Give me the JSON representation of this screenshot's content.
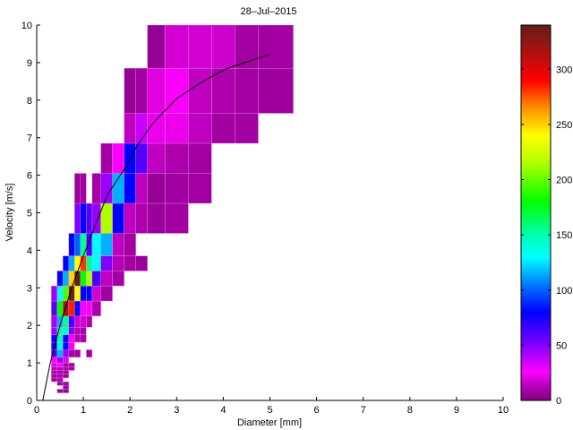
{
  "chart_data": {
    "type": "heatmap",
    "title": "28–Jul–2015",
    "xlabel": "Diameter [mm]",
    "ylabel": "Velocity [m/s]",
    "xlim": [
      0,
      10
    ],
    "ylim": [
      0,
      10
    ],
    "xticks": [
      "0",
      "1",
      "2",
      "3",
      "4",
      "5",
      "6",
      "7",
      "8",
      "9",
      "10"
    ],
    "yticks": [
      "0",
      "1",
      "2",
      "3",
      "4",
      "5",
      "6",
      "7",
      "8",
      "9",
      "10"
    ],
    "grid": false,
    "colorbar": {
      "range": [
        0,
        340
      ],
      "ticks": [
        "0",
        "50",
        "100",
        "150",
        "200",
        "250",
        "300"
      ],
      "colormap": [
        [
          0,
          "#800080"
        ],
        [
          15,
          "#c000c0"
        ],
        [
          25,
          "#ff00ff"
        ],
        [
          50,
          "#8000ff"
        ],
        [
          80,
          "#0000ff"
        ],
        [
          100,
          "#0060ff"
        ],
        [
          130,
          "#00ffff"
        ],
        [
          150,
          "#00ffb0"
        ],
        [
          180,
          "#00ff00"
        ],
        [
          215,
          "#b0ff00"
        ],
        [
          240,
          "#ffff00"
        ],
        [
          265,
          "#ff9000"
        ],
        [
          290,
          "#ff0000"
        ],
        [
          315,
          "#b01010"
        ],
        [
          340,
          "#602018"
        ]
      ],
      "placement": "right"
    },
    "diameter_bin_edges": [
      0.3125,
      0.4375,
      0.5625,
      0.6875,
      0.8125,
      0.9375,
      1.0625,
      1.1875,
      1.375,
      1.625,
      1.875,
      2.125,
      2.375,
      2.75,
      3.25,
      3.75,
      4.25,
      4.75,
      5.5
    ],
    "velocity_bin_edges": [
      0.2,
      0.3,
      0.4,
      0.5,
      0.6,
      0.7,
      0.8,
      0.9,
      1.0,
      1.15,
      1.35,
      1.55,
      1.75,
      1.95,
      2.25,
      2.65,
      3.05,
      3.45,
      3.85,
      4.45,
      5.25,
      6.05,
      6.85,
      7.65,
      8.85,
      10.0
    ],
    "cells_format": [
      "diameter_bin",
      "velocity_bin",
      "count"
    ],
    "cells": [
      [
        1,
        0,
        8
      ],
      [
        2,
        0,
        8
      ],
      [
        2,
        1,
        8
      ],
      [
        1,
        2,
        8
      ],
      [
        2,
        2,
        8
      ],
      [
        0,
        3,
        8
      ],
      [
        1,
        3,
        10
      ],
      [
        0,
        4,
        8
      ],
      [
        1,
        4,
        10
      ],
      [
        2,
        4,
        8
      ],
      [
        0,
        5,
        10
      ],
      [
        1,
        5,
        10
      ],
      [
        2,
        5,
        8
      ],
      [
        0,
        6,
        15
      ],
      [
        1,
        6,
        15
      ],
      [
        2,
        6,
        8
      ],
      [
        3,
        6,
        8
      ],
      [
        0,
        7,
        20
      ],
      [
        1,
        7,
        25
      ],
      [
        2,
        7,
        8
      ],
      [
        3,
        7,
        8
      ],
      [
        0,
        8,
        25
      ],
      [
        1,
        8,
        45
      ],
      [
        2,
        8,
        22
      ],
      [
        0,
        9,
        65
      ],
      [
        1,
        9,
        115
      ],
      [
        2,
        9,
        45
      ],
      [
        3,
        9,
        8
      ],
      [
        4,
        9,
        8
      ],
      [
        6,
        9,
        8
      ],
      [
        0,
        10,
        75
      ],
      [
        1,
        10,
        140
      ],
      [
        2,
        10,
        80
      ],
      [
        3,
        10,
        25
      ],
      [
        0,
        11,
        80
      ],
      [
        1,
        11,
        150
      ],
      [
        2,
        11,
        80
      ],
      [
        3,
        11,
        25
      ],
      [
        4,
        11,
        12
      ],
      [
        5,
        11,
        10
      ],
      [
        0,
        12,
        45
      ],
      [
        1,
        12,
        150
      ],
      [
        2,
        12,
        145
      ],
      [
        3,
        12,
        50
      ],
      [
        4,
        12,
        12
      ],
      [
        5,
        12,
        10
      ],
      [
        0,
        13,
        42
      ],
      [
        1,
        13,
        115
      ],
      [
        2,
        13,
        155
      ],
      [
        3,
        13,
        65
      ],
      [
        4,
        13,
        18
      ],
      [
        5,
        13,
        18
      ],
      [
        6,
        13,
        10
      ],
      [
        0,
        14,
        60
      ],
      [
        1,
        14,
        180
      ],
      [
        2,
        14,
        320
      ],
      [
        3,
        14,
        285
      ],
      [
        4,
        14,
        80
      ],
      [
        5,
        14,
        25
      ],
      [
        6,
        14,
        25
      ],
      [
        7,
        14,
        10
      ],
      [
        0,
        15,
        45
      ],
      [
        1,
        15,
        130
      ],
      [
        2,
        15,
        195
      ],
      [
        3,
        15,
        335
      ],
      [
        4,
        15,
        240
      ],
      [
        5,
        15,
        80
      ],
      [
        6,
        15,
        80
      ],
      [
        7,
        15,
        18
      ],
      [
        8,
        15,
        8
      ],
      [
        1,
        16,
        80
      ],
      [
        2,
        16,
        115
      ],
      [
        3,
        16,
        250
      ],
      [
        4,
        16,
        340
      ],
      [
        5,
        16,
        180
      ],
      [
        6,
        16,
        215
      ],
      [
        7,
        16,
        65
      ],
      [
        8,
        16,
        15
      ],
      [
        9,
        16,
        8
      ],
      [
        2,
        17,
        80
      ],
      [
        3,
        17,
        115
      ],
      [
        4,
        17,
        240
      ],
      [
        5,
        17,
        280
      ],
      [
        6,
        17,
        155
      ],
      [
        7,
        17,
        130
      ],
      [
        8,
        17,
        50
      ],
      [
        9,
        17,
        12
      ],
      [
        10,
        17,
        8
      ],
      [
        11,
        17,
        6
      ],
      [
        3,
        18,
        80
      ],
      [
        4,
        18,
        100
      ],
      [
        5,
        18,
        155
      ],
      [
        6,
        18,
        65
      ],
      [
        7,
        18,
        130
      ],
      [
        8,
        18,
        115
      ],
      [
        9,
        18,
        15
      ],
      [
        10,
        18,
        8
      ],
      [
        4,
        19,
        50
      ],
      [
        5,
        19,
        80
      ],
      [
        6,
        19,
        60
      ],
      [
        7,
        19,
        45
      ],
      [
        8,
        19,
        215
      ],
      [
        9,
        19,
        80
      ],
      [
        10,
        19,
        15
      ],
      [
        11,
        19,
        10
      ],
      [
        12,
        19,
        6
      ],
      [
        13,
        19,
        8
      ],
      [
        4,
        20,
        6
      ],
      [
        5,
        20,
        8
      ],
      [
        7,
        20,
        8
      ],
      [
        8,
        20,
        45
      ],
      [
        9,
        20,
        115
      ],
      [
        10,
        20,
        80
      ],
      [
        11,
        20,
        15
      ],
      [
        12,
        20,
        5
      ],
      [
        13,
        20,
        8
      ],
      [
        14,
        20,
        8
      ],
      [
        8,
        21,
        8
      ],
      [
        9,
        21,
        25
      ],
      [
        10,
        21,
        80
      ],
      [
        11,
        21,
        60
      ],
      [
        12,
        21,
        15
      ],
      [
        13,
        21,
        10
      ],
      [
        14,
        21,
        8
      ],
      [
        10,
        22,
        15
      ],
      [
        11,
        22,
        35
      ],
      [
        12,
        22,
        22
      ],
      [
        13,
        22,
        22
      ],
      [
        14,
        22,
        15
      ],
      [
        15,
        22,
        8
      ],
      [
        16,
        22,
        8
      ],
      [
        10,
        23,
        5
      ],
      [
        11,
        23,
        8
      ],
      [
        12,
        23,
        20
      ],
      [
        13,
        23,
        24
      ],
      [
        14,
        23,
        15
      ],
      [
        15,
        23,
        10
      ],
      [
        16,
        23,
        8
      ],
      [
        17,
        23,
        7
      ],
      [
        12,
        24,
        5
      ],
      [
        13,
        24,
        18
      ],
      [
        14,
        24,
        18
      ],
      [
        15,
        24,
        17
      ],
      [
        16,
        24,
        8
      ],
      [
        17,
        24,
        8
      ]
    ],
    "fit_line": {
      "color": "#000000",
      "x": [
        0.13,
        0.29,
        0.5,
        0.75,
        1.0,
        1.25,
        1.52,
        1.9,
        2.15,
        2.5,
        3.0,
        3.5,
        4.05,
        4.5,
        5.0
      ],
      "y": [
        0,
        1,
        2,
        3,
        3.85,
        4.65,
        5.49,
        6.2,
        6.78,
        7.4,
        8.04,
        8.45,
        8.83,
        9.02,
        9.22
      ]
    }
  }
}
